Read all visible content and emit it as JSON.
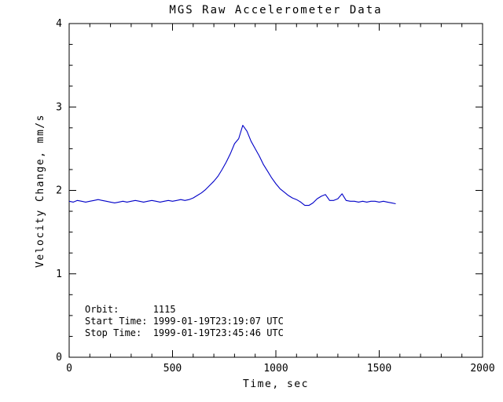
{
  "chart_data": {
    "type": "line",
    "title": "MGS Raw Accelerometer Data",
    "xlabel": "Time, sec",
    "ylabel": "Velocity Change, mm/s",
    "xlim": [
      0,
      2000
    ],
    "ylim": [
      0,
      4
    ],
    "xticks": [
      0,
      500,
      1000,
      1500,
      2000
    ],
    "yticks": [
      0,
      1,
      2,
      3,
      4
    ],
    "x_minor_step": 100,
    "y_minor_step": 0.25,
    "grid": false,
    "legend": "none",
    "line_color": "#0000c8",
    "axis_color": "#000000",
    "series": [
      {
        "name": "velocity-change",
        "x": [
          0,
          20,
          40,
          60,
          80,
          100,
          120,
          140,
          160,
          180,
          200,
          220,
          240,
          260,
          280,
          300,
          320,
          340,
          360,
          380,
          400,
          420,
          440,
          460,
          480,
          500,
          520,
          540,
          560,
          580,
          600,
          620,
          640,
          660,
          680,
          700,
          720,
          740,
          760,
          780,
          800,
          820,
          840,
          860,
          880,
          900,
          920,
          940,
          960,
          980,
          1000,
          1020,
          1040,
          1060,
          1080,
          1100,
          1120,
          1140,
          1160,
          1180,
          1200,
          1220,
          1240,
          1260,
          1280,
          1300,
          1320,
          1340,
          1360,
          1380,
          1400,
          1420,
          1440,
          1460,
          1480,
          1500,
          1520,
          1540,
          1560,
          1580
        ],
        "y": [
          1.87,
          1.86,
          1.88,
          1.87,
          1.86,
          1.87,
          1.88,
          1.89,
          1.88,
          1.87,
          1.86,
          1.85,
          1.86,
          1.87,
          1.86,
          1.87,
          1.88,
          1.87,
          1.86,
          1.87,
          1.88,
          1.87,
          1.86,
          1.87,
          1.88,
          1.87,
          1.88,
          1.89,
          1.88,
          1.89,
          1.91,
          1.94,
          1.97,
          2.01,
          2.06,
          2.11,
          2.17,
          2.25,
          2.34,
          2.44,
          2.56,
          2.62,
          2.78,
          2.71,
          2.59,
          2.5,
          2.41,
          2.31,
          2.23,
          2.15,
          2.08,
          2.02,
          1.98,
          1.94,
          1.91,
          1.89,
          1.86,
          1.82,
          1.82,
          1.85,
          1.9,
          1.93,
          1.95,
          1.88,
          1.88,
          1.9,
          1.96,
          1.88,
          1.87,
          1.87,
          1.86,
          1.87,
          1.86,
          1.87,
          1.87,
          1.86,
          1.87,
          1.86,
          1.85,
          1.84
        ]
      }
    ],
    "annotations": [
      "Orbit:      1115",
      "Start Time: 1999-01-19T23:19:07 UTC",
      "Stop Time:  1999-01-19T23:45:46 UTC"
    ]
  }
}
